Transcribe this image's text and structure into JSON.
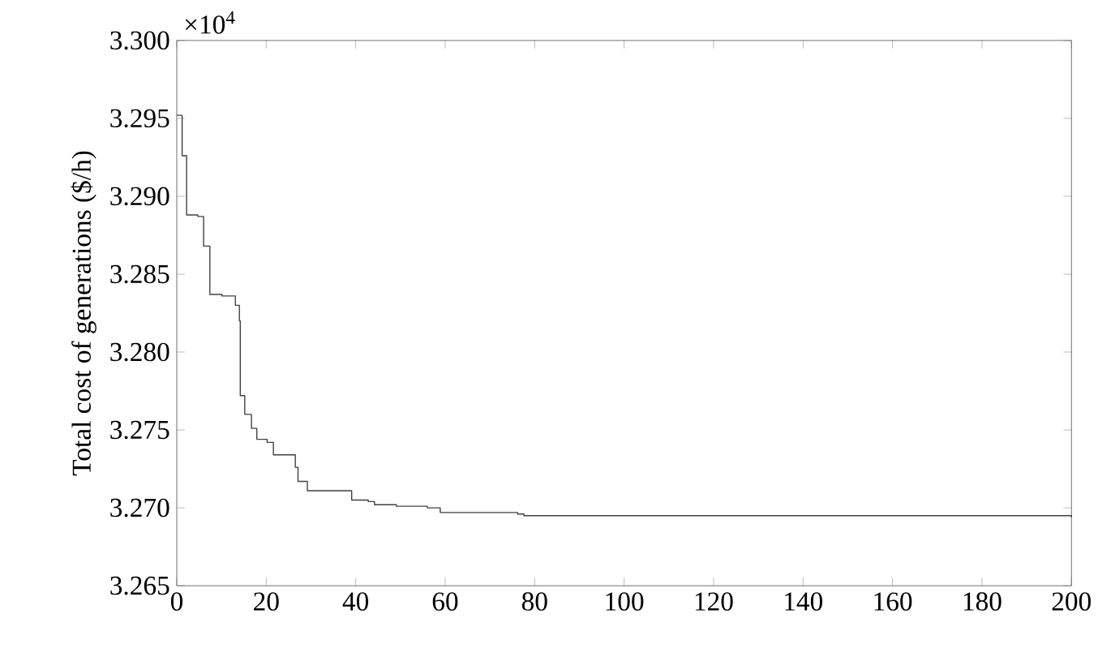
{
  "chart_data": {
    "type": "step",
    "ylabel": "Total cost of generations ($/h)",
    "annotations": [
      "×10$^{4}$"
    ],
    "x": [
      0,
      1.2,
      2.2,
      4.7,
      6,
      7.4,
      10.1,
      13.1,
      14,
      14.2,
      15.2,
      16.7,
      17.9,
      20.2,
      21.6,
      25.5,
      26.5,
      27.1,
      29.2,
      38.1,
      39.1,
      42.8,
      44.2,
      47.6,
      49.1,
      56,
      58.9,
      76.2,
      77.6,
      155,
      200
    ],
    "values": [
      3.2952,
      3.2926,
      3.2888,
      3.2887,
      3.2868,
      3.2837,
      3.2836,
      3.283,
      3.282,
      3.2772,
      3.276,
      3.2751,
      3.2744,
      3.2742,
      3.2734,
      3.2734,
      3.2726,
      3.2717,
      3.2711,
      3.2711,
      3.2705,
      3.2704,
      3.2702,
      3.2702,
      3.2701,
      3.27,
      3.2697,
      3.2696,
      3.2695,
      3.2695,
      3.2694
    ],
    "color": "#404040",
    "xlim": [
      0,
      200
    ],
    "xticks": [
      0,
      20,
      40,
      60,
      80,
      100,
      120,
      140,
      160,
      180,
      200
    ],
    "ylim": [
      3.265,
      3.3
    ],
    "yticks": [
      {
        "value": 3.265,
        "label": "3.265"
      },
      {
        "value": 3.27,
        "label": "3.270"
      },
      {
        "value": 3.275,
        "label": "3.275"
      },
      {
        "value": 3.28,
        "label": "3.280"
      },
      {
        "value": 3.285,
        "label": "3.285"
      },
      {
        "value": 3.29,
        "label": "3.290"
      },
      {
        "value": 3.295,
        "label": "3.295"
      },
      {
        "value": 3.3,
        "label": "3.300"
      }
    ],
    "grid": false
  }
}
